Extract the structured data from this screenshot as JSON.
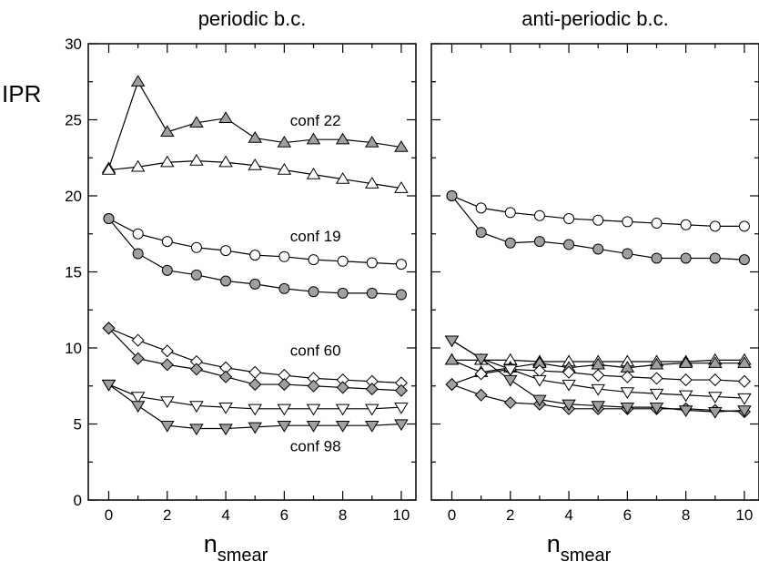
{
  "ylabel": "IPR",
  "xlabel_main": "n",
  "xlabel_sub": "smear",
  "chart_data": [
    {
      "type": "line",
      "title": "periodic b.c.",
      "xlim": [
        -0.7,
        10.5
      ],
      "ylim": [
        0,
        30
      ],
      "x": [
        0,
        1,
        2,
        3,
        4,
        5,
        6,
        7,
        8,
        9,
        10
      ],
      "xticks": [
        0,
        2,
        4,
        6,
        8,
        10
      ],
      "yticks": [
        0,
        5,
        10,
        15,
        20,
        25,
        30
      ],
      "annotations": [
        {
          "text": "conf 22",
          "x": 6.2,
          "y": 24.6
        },
        {
          "text": "conf 19",
          "x": 6.2,
          "y": 17.0
        },
        {
          "text": "conf 60",
          "x": 6.2,
          "y": 9.5
        },
        {
          "text": "conf 98",
          "x": 6.2,
          "y": 3.2
        }
      ],
      "series": [
        {
          "marker": "triangle-up",
          "fill": "#a0a0a0",
          "values": [
            21.8,
            27.5,
            24.2,
            24.8,
            25.1,
            23.8,
            23.5,
            23.7,
            23.7,
            23.5,
            23.2
          ]
        },
        {
          "marker": "triangle-up",
          "fill": "#ffffff",
          "values": [
            21.7,
            21.9,
            22.2,
            22.3,
            22.2,
            22.0,
            21.7,
            21.4,
            21.1,
            20.8,
            20.5
          ]
        },
        {
          "marker": "circle",
          "fill": "#ffffff",
          "values": [
            18.5,
            17.5,
            17.0,
            16.6,
            16.4,
            16.1,
            16.0,
            15.8,
            15.7,
            15.6,
            15.5
          ]
        },
        {
          "marker": "circle",
          "fill": "#a0a0a0",
          "values": [
            18.5,
            16.2,
            15.1,
            14.8,
            14.4,
            14.2,
            13.9,
            13.7,
            13.6,
            13.6,
            13.5
          ]
        },
        {
          "marker": "diamond",
          "fill": "#ffffff",
          "values": [
            11.3,
            10.5,
            9.8,
            9.1,
            8.7,
            8.4,
            8.2,
            8.0,
            7.9,
            7.8,
            7.7
          ]
        },
        {
          "marker": "diamond",
          "fill": "#a0a0a0",
          "values": [
            11.3,
            9.3,
            8.9,
            8.6,
            8.1,
            7.6,
            7.6,
            7.5,
            7.4,
            7.3,
            7.2
          ]
        },
        {
          "marker": "triangle-down",
          "fill": "#ffffff",
          "values": [
            7.6,
            6.8,
            6.5,
            6.2,
            6.1,
            6.0,
            6.0,
            6.0,
            6.0,
            6.0,
            6.1
          ]
        },
        {
          "marker": "triangle-down",
          "fill": "#a0a0a0",
          "values": [
            7.6,
            6.2,
            4.9,
            4.7,
            4.7,
            4.8,
            4.9,
            4.9,
            4.9,
            4.9,
            5.0
          ]
        }
      ]
    },
    {
      "type": "line",
      "title": "anti-periodic b.c.",
      "xlim": [
        -0.7,
        10.5
      ],
      "ylim": [
        0,
        30
      ],
      "x": [
        0,
        1,
        2,
        3,
        4,
        5,
        6,
        7,
        8,
        9,
        10
      ],
      "xticks": [
        0,
        2,
        4,
        6,
        8,
        10
      ],
      "yticks": [
        0,
        5,
        10,
        15,
        20,
        25,
        30
      ],
      "annotations": [],
      "series": [
        {
          "marker": "circle",
          "fill": "#ffffff",
          "values": [
            20.0,
            19.2,
            18.9,
            18.7,
            18.5,
            18.4,
            18.3,
            18.2,
            18.1,
            18.0,
            18.0
          ]
        },
        {
          "marker": "circle",
          "fill": "#a0a0a0",
          "values": [
            20.0,
            17.6,
            16.9,
            17.0,
            16.8,
            16.5,
            16.2,
            15.9,
            15.9,
            15.9,
            15.8
          ]
        },
        {
          "marker": "triangle-up",
          "fill": "#ffffff",
          "values": [
            9.2,
            9.2,
            9.2,
            9.1,
            9.1,
            9.1,
            9.1,
            9.1,
            9.1,
            9.2,
            9.2
          ]
        },
        {
          "marker": "triangle-up",
          "fill": "#a0a0a0",
          "values": [
            9.2,
            8.4,
            8.7,
            9.0,
            8.7,
            8.9,
            8.7,
            8.9,
            9.0,
            9.0,
            9.0
          ]
        },
        {
          "marker": "diamond",
          "fill": "#ffffff",
          "values": [
            7.6,
            8.3,
            8.6,
            8.5,
            8.4,
            8.2,
            8.1,
            8.0,
            7.9,
            7.9,
            7.8
          ]
        },
        {
          "marker": "diamond",
          "fill": "#a0a0a0",
          "values": [
            7.6,
            6.9,
            6.4,
            6.3,
            6.0,
            6.0,
            6.0,
            6.0,
            6.0,
            5.9,
            5.8
          ]
        },
        {
          "marker": "triangle-down",
          "fill": "#ffffff",
          "values": [
            10.5,
            9.3,
            8.6,
            7.9,
            7.6,
            7.3,
            7.1,
            7.0,
            6.9,
            6.8,
            6.7
          ]
        },
        {
          "marker": "triangle-down",
          "fill": "#a0a0a0",
          "values": [
            10.5,
            9.3,
            7.9,
            6.6,
            6.3,
            6.2,
            6.1,
            6.1,
            5.9,
            5.8,
            5.9
          ]
        }
      ]
    }
  ]
}
